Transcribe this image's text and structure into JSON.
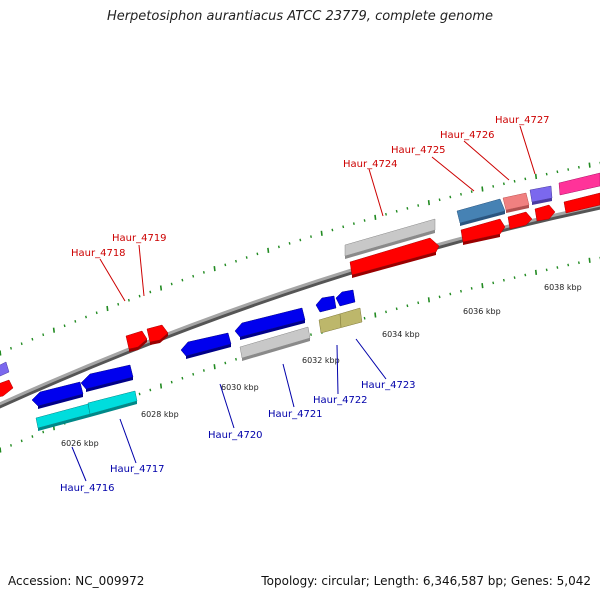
{
  "title": "Herpetosiphon aurantiacus ATCC 23779, complete genome",
  "footer": {
    "accession": "Accession: NC_009972",
    "stats": "Topology: circular; Length: 6,346,587 bp; Genes: 5,042"
  },
  "colors": {
    "backbone": "#8a8a8a",
    "tick": "#228b22",
    "label_forward": "#cc0000",
    "label_reverse": "#0000aa"
  },
  "kbp_labels": [
    "6026 kbp",
    "6028 kbp",
    "6030 kbp",
    "6032 kbp",
    "6034 kbp",
    "6036 kbp",
    "6038 kbp"
  ],
  "genes_forward": [
    {
      "name": "Haur_4718",
      "color": "#ff0000"
    },
    {
      "name": "Haur_4719",
      "color": "#ff0000"
    },
    {
      "name": "Haur_4724",
      "color": "#bbbbbb"
    },
    {
      "name": "Haur_4725",
      "color": "#4682b4"
    },
    {
      "name": "Haur_4726",
      "color": "#f08080"
    },
    {
      "name": "Haur_4727",
      "color": "#7b68ee"
    }
  ],
  "genes_reverse": [
    {
      "name": "Haur_4716",
      "color": "#0000ee"
    },
    {
      "name": "Haur_4717",
      "color": "#00cccc"
    },
    {
      "name": "Haur_4720",
      "color": "#0000ee"
    },
    {
      "name": "Haur_4721",
      "color": "#bbbbbb"
    },
    {
      "name": "Haur_4722",
      "color": "#0000ee"
    },
    {
      "name": "Haur_4723",
      "color": "#bdb76b"
    }
  ]
}
